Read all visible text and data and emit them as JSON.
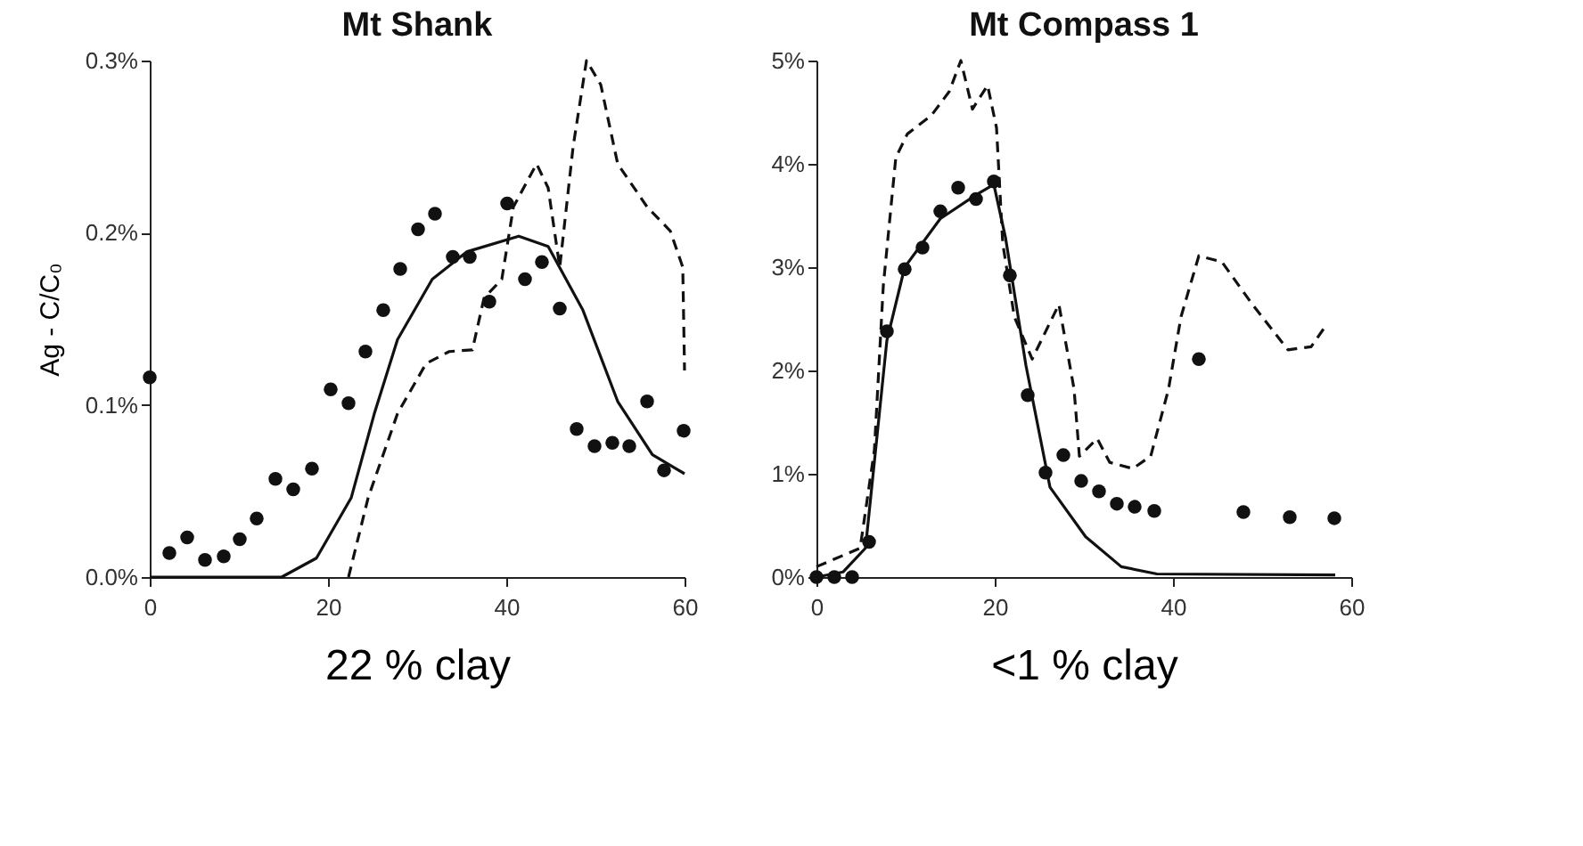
{
  "chart_data": [
    {
      "type": "scatter",
      "title": "Mt Shank",
      "xlabel": "22 % clay",
      "ylabel": "Ag - C/C₀",
      "grid": false,
      "legend": false,
      "xlim": [
        0,
        60
      ],
      "xticks": [
        0,
        20,
        40,
        60
      ],
      "ylim": [
        0,
        0.3
      ],
      "yticks": [
        {
          "value": 0,
          "label": "0.0%"
        },
        {
          "value": 0.1,
          "label": "0.1%"
        },
        {
          "value": 0.2,
          "label": "0.2%"
        },
        {
          "value": 0.3,
          "label": "0.3%"
        }
      ],
      "series": [
        {
          "marker": "circle",
          "color": "#111111",
          "x": [
            0,
            2.2,
            4.2,
            6.2,
            8.3,
            10.1,
            12.0,
            14.1,
            16.1,
            18.2,
            20.3,
            22.3,
            24.2,
            26.2,
            28.1,
            30.1,
            32.0,
            34.0,
            35.9,
            38.1,
            40.1,
            42.1,
            44.0,
            46.0,
            47.9,
            49.9,
            51.9,
            53.8,
            55.8,
            57.7,
            59.9
          ],
          "values": [
            0.116,
            0.014,
            0.023,
            0.01,
            0.012,
            0.022,
            0.034,
            0.057,
            0.051,
            0.063,
            0.109,
            0.101,
            0.131,
            0.155,
            0.179,
            0.202,
            0.211,
            0.186,
            0.186,
            0.16,
            0.217,
            0.173,
            0.183,
            0.156,
            0.086,
            0.076,
            0.078,
            0.076,
            0.102,
            0.062,
            0.085
          ]
        },
        {
          "type": "line",
          "line_style": "solid",
          "color": "#111111",
          "x": [
            0,
            14.8,
            18.7,
            22.6,
            25.2,
            27.8,
            31.7,
            35.6,
            41.4,
            44.7,
            48.6,
            52.5,
            56.4,
            60
          ],
          "values": [
            0,
            0,
            0.011,
            0.046,
            0.095,
            0.138,
            0.173,
            0.189,
            0.198,
            0.192,
            0.155,
            0.102,
            0.071,
            0.06
          ]
        },
        {
          "type": "line",
          "line_style": "dashed",
          "color": "#111111",
          "x": [
            22.3,
            24.5,
            27.8,
            31.0,
            33.6,
            36.2,
            37.5,
            39.5,
            40.8,
            43.4,
            44.7,
            46.0,
            47.5,
            49.0,
            50.6,
            52.5,
            55.8,
            58.4,
            59.8,
            60
          ],
          "values": [
            0,
            0.046,
            0.095,
            0.124,
            0.131,
            0.132,
            0.162,
            0.173,
            0.215,
            0.24,
            0.226,
            0.18,
            0.25,
            0.3,
            0.286,
            0.24,
            0.215,
            0.201,
            0.18,
            0.12
          ]
        }
      ]
    },
    {
      "type": "scatter",
      "title": "Mt Compass 1",
      "xlabel": "<1 % clay",
      "grid": false,
      "legend": false,
      "xlim": [
        0,
        60
      ],
      "xticks": [
        0,
        20,
        40,
        60
      ],
      "ylim": [
        0,
        5
      ],
      "yticks": [
        {
          "value": 0,
          "label": "0%"
        },
        {
          "value": 1,
          "label": "1%"
        },
        {
          "value": 2,
          "label": "2%"
        },
        {
          "value": 3,
          "label": "3%"
        },
        {
          "value": 4,
          "label": "4%"
        },
        {
          "value": 5,
          "label": "5%"
        }
      ],
      "series": [
        {
          "marker": "circle",
          "color": "#111111",
          "x": [
            0,
            2,
            4,
            5.9,
            7.9,
            9.9,
            11.9,
            13.9,
            15.9,
            17.9,
            19.9,
            21.7,
            23.7,
            25.7,
            27.7,
            29.7,
            31.7,
            33.7,
            35.7,
            37.9,
            42.9,
            47.9,
            53.1,
            58.1
          ],
          "values": [
            0,
            0,
            0,
            0.34,
            2.38,
            2.98,
            3.19,
            3.54,
            3.77,
            3.66,
            3.83,
            2.92,
            1.76,
            1.01,
            1.18,
            0.93,
            0.83,
            0.71,
            0.68,
            0.64,
            2.11,
            0.63,
            0.58,
            0.57
          ]
        },
        {
          "type": "line",
          "line_style": "solid",
          "color": "#111111",
          "x": [
            0,
            3,
            5.5,
            7.9,
            9.9,
            13.9,
            17.9,
            19.9,
            21.2,
            23.5,
            26.2,
            30.2,
            34.2,
            38.2,
            58.2
          ],
          "values": [
            0,
            0.05,
            0.28,
            2.29,
            3.0,
            3.47,
            3.7,
            3.8,
            3.29,
            2.05,
            0.87,
            0.39,
            0.1,
            0.03,
            0.02
          ]
        },
        {
          "type": "line",
          "line_style": "dashed",
          "color": "#111111",
          "x": [
            0,
            4.9,
            6.5,
            7.5,
            8.9,
            10.2,
            12.9,
            14.9,
            16.2,
            17.5,
            19.2,
            20.2,
            20.9,
            22.2,
            24.2,
            27.2,
            28.9,
            29.5,
            31.5,
            32.9,
            35.5,
            37.5,
            39.5,
            40.9,
            42.9,
            45.5,
            48.9,
            52.9,
            55.5,
            57.2
          ],
          "values": [
            0.1,
            0.28,
            1.23,
            2.82,
            4.06,
            4.29,
            4.47,
            4.7,
            5.0,
            4.53,
            4.76,
            4.35,
            3.23,
            2.52,
            2.11,
            2.64,
            1.82,
            1.17,
            1.34,
            1.11,
            1.05,
            1.17,
            1.82,
            2.52,
            3.11,
            3.05,
            2.64,
            2.2,
            2.23,
            2.44
          ]
        }
      ]
    }
  ]
}
